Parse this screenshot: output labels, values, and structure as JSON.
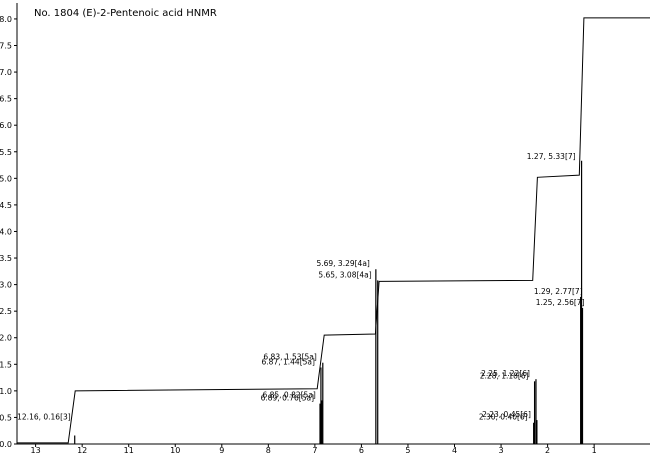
{
  "chart_data": {
    "type": "line",
    "title": "No. 1804 (E)-2-Pentenoic acid HNMR",
    "xlabel": "",
    "ylabel": "",
    "x_reversed": true,
    "xlim": [
      13.4,
      -0.2
    ],
    "ylim": [
      0,
      8.3
    ],
    "x_ticks": [
      "13",
      "12",
      "11",
      "10",
      "9",
      "8",
      "7",
      "6",
      "5",
      "4",
      "3",
      "2",
      "1"
    ],
    "y_ticks": [
      "0.0",
      "0.5",
      "1.0",
      "1.5",
      "2.0",
      "2.5",
      "3.0",
      "3.5",
      "4.0",
      "4.5",
      "5.0",
      "5.5",
      "6.0",
      "6.5",
      "7.0",
      "7.5",
      "8.0"
    ],
    "grid": false,
    "peaks": [
      {
        "x": 12.16,
        "y": 0.16,
        "label": "12.16, 0.16[3]"
      },
      {
        "x": 6.83,
        "y": 1.53,
        "label": "6.83, 1.53[5a]"
      },
      {
        "x": 6.87,
        "y": 1.44,
        "label": "6.87, 1.44[5a]"
      },
      {
        "x": 6.85,
        "y": 0.82,
        "label": "6.85, 0.82[5a]"
      },
      {
        "x": 6.89,
        "y": 0.76,
        "label": "6.89, 0.76[5a]"
      },
      {
        "x": 5.69,
        "y": 3.29,
        "label": "5.69, 3.29[4a]"
      },
      {
        "x": 5.65,
        "y": 3.08,
        "label": "5.65, 3.08[4a]"
      },
      {
        "x": 2.25,
        "y": 1.22,
        "label": "2.25, 1.22[6]"
      },
      {
        "x": 2.28,
        "y": 1.18,
        "label": "2.28, 1.18[6]"
      },
      {
        "x": 2.23,
        "y": 0.45,
        "label": "2.23, 0.45[6]"
      },
      {
        "x": 2.3,
        "y": 0.4,
        "label": "2.30, 0.40[6]"
      },
      {
        "x": 1.29,
        "y": 2.77,
        "label": "1.29, 2.77[7]"
      },
      {
        "x": 1.25,
        "y": 2.56,
        "label": "1.25, 2.56[7]"
      },
      {
        "x": 1.27,
        "y": 5.33,
        "label": "1.27, 5.33[7]"
      }
    ],
    "integral_curve": [
      [
        13.4,
        0.02
      ],
      [
        12.3,
        0.02
      ],
      [
        12.15,
        1.0
      ],
      [
        6.95,
        1.04
      ],
      [
        6.8,
        2.05
      ],
      [
        5.7,
        2.07
      ],
      [
        5.62,
        3.06
      ],
      [
        2.32,
        3.08
      ],
      [
        2.22,
        5.02
      ],
      [
        1.32,
        5.06
      ],
      [
        1.22,
        8.02
      ],
      [
        -0.2,
        8.02
      ]
    ]
  }
}
